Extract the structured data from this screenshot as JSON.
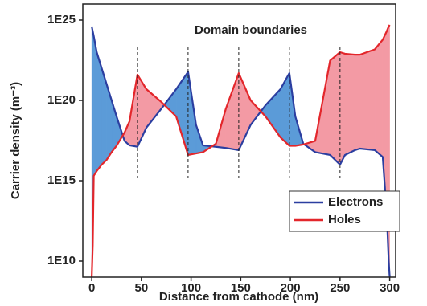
{
  "chart_data": {
    "type": "line",
    "x_label": "Distance from cathode (nm)",
    "y_label": "Carrier density (m⁻³)",
    "annotation": "Domain boundaries",
    "boundaries": [
      46,
      97,
      148,
      199,
      250
    ],
    "log_y": true,
    "fill_between": true,
    "legend": "lower right",
    "xlim": [
      -9,
      306
    ],
    "xticks": [
      0,
      50,
      100,
      150,
      200,
      250,
      300
    ],
    "ylim": [
      1000000000.0,
      1e+26
    ],
    "yticks": [
      {
        "value": 10000000000.0,
        "label": "1E10"
      },
      {
        "value": 1000000000000000.0,
        "label": "1E15"
      },
      {
        "value": 1e+20,
        "label": "1E20"
      },
      {
        "value": 1e+25,
        "label": "1E25"
      }
    ],
    "x": [
      0,
      1,
      2,
      5,
      10,
      15,
      20,
      25,
      33,
      38,
      46,
      55,
      70,
      85,
      97,
      105,
      112,
      125,
      135,
      148,
      160,
      175,
      190,
      199,
      205,
      213,
      225,
      240,
      250,
      255,
      265,
      270,
      285,
      293,
      297,
      299,
      300
    ],
    "series": [
      {
        "name": "Electrons",
        "color": "#2b3ea0",
        "fill": "#5b9bd8",
        "values": [
          4e+24,
          2e+24,
          1e+24,
          1e+23,
          1e+22,
          1e+21,
          1e+20,
          1e+19,
          3e+17,
          1.6e+17,
          1.3e+17,
          2e+18,
          3e+19,
          5e+20,
          6e+21,
          3e+18,
          1.6e+17,
          1.3e+17,
          1.1e+17,
          8e+16,
          3e+18,
          5e+19,
          5e+20,
          5e+21,
          1e+19,
          2e+17,
          6e+16,
          4e+16,
          1e+16,
          4e+16,
          8e+16,
          1e+17,
          8e+16,
          3e+16,
          10000000000000.0,
          10000000000.0,
          1000000000.0
        ]
      },
      {
        "name": "Holes",
        "color": "#e3262b",
        "fill": "#f39aa4",
        "values": [
          1000000000.0,
          100000000000.0,
          2000000000000000.0,
          4000000000000000.0,
          1e+16,
          2e+16,
          6e+16,
          1.5e+17,
          1e+18,
          5e+18,
          4e+21,
          5e+20,
          8e+19,
          1e+19,
          4e+16,
          5e+16,
          6e+16,
          2e+17,
          3e+19,
          5e+21,
          1e+20,
          1e+19,
          5e+17,
          1.5e+17,
          1.5e+17,
          1.8e+17,
          3e+17,
          3e+22,
          1e+23,
          8e+22,
          7e+22,
          7e+22,
          1.5e+23,
          6e+23,
          2e+24,
          4e+24,
          5e+24
        ]
      }
    ]
  }
}
